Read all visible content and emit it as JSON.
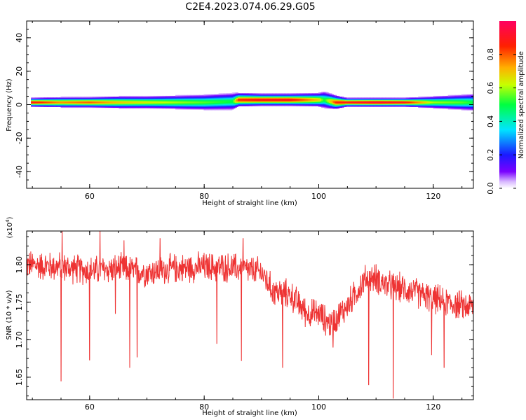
{
  "figure_title": "C2E4.2023.074.06.29.G05",
  "chart_data": [
    {
      "type": "heatmap",
      "xlabel": "Height of straight line (km)",
      "ylabel": "Frequency (Hz)",
      "xlim": [
        49,
        127
      ],
      "ylim": [
        -50,
        50
      ],
      "x_ticks": [
        60,
        80,
        100,
        120
      ],
      "y_ticks": [
        -40,
        -20,
        0,
        20,
        40
      ],
      "colorbar": {
        "label": "Normalized spectral amplitude",
        "range": [
          0,
          1
        ],
        "ticks": [
          "0.0",
          "0.2",
          "0.4",
          "0.6",
          "0.8"
        ]
      },
      "ridge": {
        "x": [
          50,
          55,
          60,
          65,
          70,
          75,
          80,
          85,
          86,
          90,
          95,
          100,
          101,
          103,
          105,
          110,
          115,
          120,
          125,
          127
        ],
        "center_freq": [
          1.5,
          1.5,
          1.5,
          1.5,
          1.5,
          1.5,
          1.5,
          2,
          3,
          3,
          3,
          3,
          3,
          1.5,
          1.5,
          1.5,
          1.5,
          1.5,
          1.5,
          1.5
        ],
        "half_width": [
          2.5,
          3,
          3,
          3.5,
          3.5,
          4,
          4.5,
          5,
          4,
          3.5,
          3.5,
          4,
          5,
          4,
          2.5,
          2.5,
          2.5,
          3.5,
          4.5,
          5
        ],
        "peak_amplitude": [
          0.9,
          0.75,
          0.8,
          0.7,
          0.65,
          0.6,
          0.55,
          0.5,
          0.85,
          0.9,
          0.9,
          0.7,
          0.5,
          0.85,
          0.9,
          0.95,
          0.9,
          0.6,
          0.55,
          0.5
        ]
      }
    },
    {
      "type": "line",
      "xlabel": "Height of straight line (km)",
      "ylabel": "SNR (10 * v/v)",
      "y_scale_note": "(x10",
      "y_scale_exp": "4",
      "y_scale_close": ")",
      "xlim": [
        49,
        127
      ],
      "ylim": [
        1.62,
        1.845
      ],
      "x_ticks": [
        60,
        80,
        100,
        120
      ],
      "y_ticks": [
        1.65,
        1.7,
        1.75,
        1.8
      ],
      "y_tick_labels": [
        "1.65",
        "1.70",
        "1.75",
        "1.80"
      ],
      "line_color": "#ee3333",
      "baseline": {
        "x": [
          49,
          55,
          60,
          65,
          70,
          75,
          80,
          85,
          90,
          92,
          95,
          98,
          100,
          102,
          105,
          108,
          110,
          112,
          115,
          120,
          125,
          127
        ],
        "y": [
          1.8,
          1.797,
          1.792,
          1.795,
          1.79,
          1.795,
          1.797,
          1.796,
          1.79,
          1.765,
          1.76,
          1.735,
          1.735,
          1.72,
          1.745,
          1.78,
          1.782,
          1.772,
          1.768,
          1.755,
          1.745,
          1.745
        ]
      },
      "noise_amplitude": 0.018,
      "dips": [
        {
          "x": 55.0,
          "y": 1.645
        },
        {
          "x": 60.0,
          "y": 1.673
        },
        {
          "x": 64.5,
          "y": 1.735
        },
        {
          "x": 67.0,
          "y": 1.663
        },
        {
          "x": 68.3,
          "y": 1.677
        },
        {
          "x": 82.2,
          "y": 1.695
        },
        {
          "x": 86.5,
          "y": 1.672
        },
        {
          "x": 93.7,
          "y": 1.663
        },
        {
          "x": 102.5,
          "y": 1.69
        },
        {
          "x": 108.7,
          "y": 1.64
        },
        {
          "x": 113.0,
          "y": 1.622
        },
        {
          "x": 119.7,
          "y": 1.68
        },
        {
          "x": 121.9,
          "y": 1.663
        }
      ],
      "spikes": [
        {
          "x": 55.2,
          "y": 1.845
        },
        {
          "x": 61.8,
          "y": 1.845
        },
        {
          "x": 72.3,
          "y": 1.835
        },
        {
          "x": 86.8,
          "y": 1.835
        },
        {
          "x": 66.0,
          "y": 1.832
        }
      ]
    }
  ]
}
